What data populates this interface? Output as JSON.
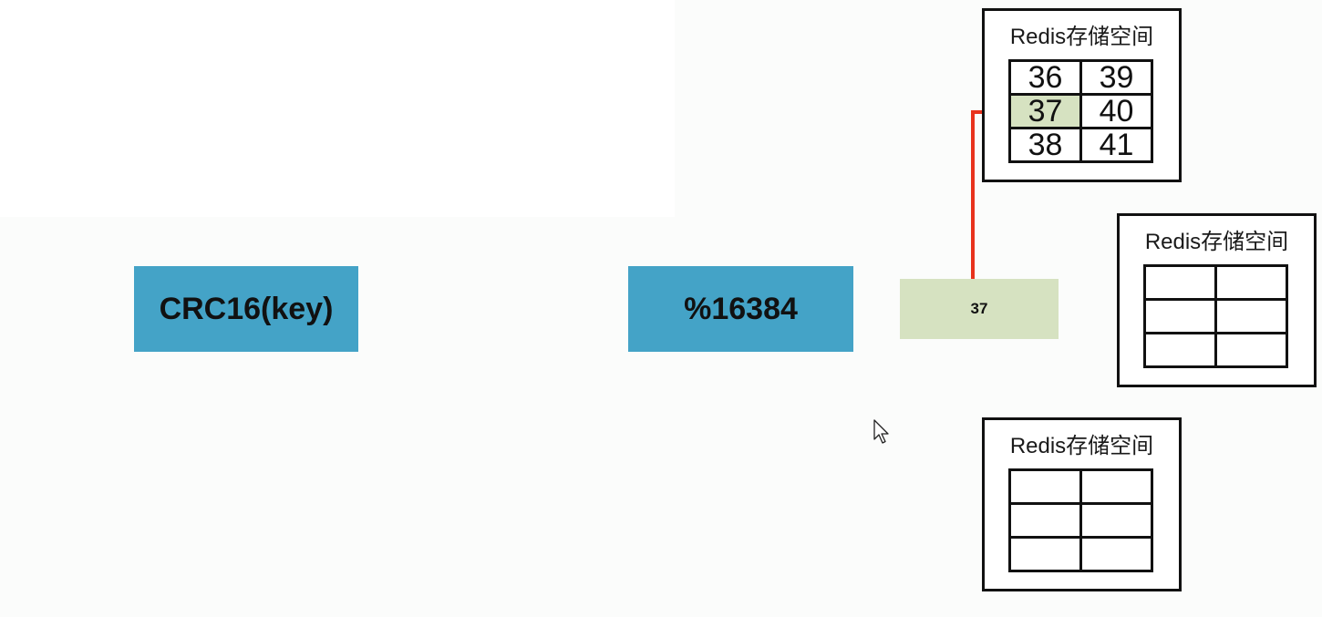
{
  "diagram": {
    "steps": {
      "hash_function": "CRC16(key)",
      "modulo": "%16384",
      "slot_result": "37"
    },
    "nodes": [
      {
        "title": "Redis存储空间",
        "slots": [
          [
            "36",
            "39"
          ],
          [
            "37",
            "40"
          ],
          [
            "38",
            "41"
          ]
        ],
        "highlighted_slot": "37"
      },
      {
        "title": "Redis存储空间",
        "slots": [
          [
            "",
            ""
          ],
          [
            "",
            ""
          ],
          [
            "",
            ""
          ]
        ]
      },
      {
        "title": "Redis存储空间",
        "slots": [
          [
            "",
            ""
          ],
          [
            "",
            ""
          ],
          [
            "",
            ""
          ]
        ]
      }
    ],
    "colors": {
      "step_box": "#44a3c7",
      "slot_highlight": "#d6e2c1",
      "arrow": "#e8321c"
    },
    "icons": {
      "pointer": "mouse-cursor-icon",
      "arrow": "arrow-right-icon"
    }
  }
}
